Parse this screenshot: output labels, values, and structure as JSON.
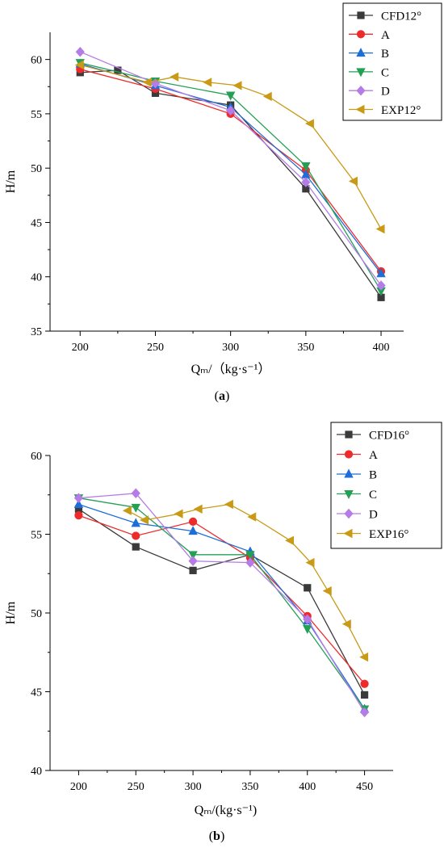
{
  "chart_data": [
    {
      "type": "line",
      "panel_label": "(a)",
      "xlabel": "Qₘ/（kg·s⁻¹）",
      "ylabel": "H/m",
      "xlim": [
        180,
        415
      ],
      "ylim": [
        35,
        62.5
      ],
      "xticks": [
        200,
        250,
        300,
        350,
        400
      ],
      "yticks": [
        35,
        40,
        45,
        50,
        55,
        60
      ],
      "legend_position": "top-right",
      "series": [
        {
          "name": "CFD12°",
          "color": "#3a3a3a",
          "marker": "square",
          "x": [
            200,
            225,
            250,
            300,
            350,
            400
          ],
          "y": [
            58.8,
            59.0,
            56.9,
            55.8,
            48.1,
            38.1
          ]
        },
        {
          "name": "A",
          "color": "#ee2b2b",
          "marker": "circle",
          "x": [
            200,
            250,
            300,
            350,
            400
          ],
          "y": [
            59.1,
            57.3,
            55.0,
            49.8,
            40.5
          ]
        },
        {
          "name": "B",
          "color": "#1e6ed8",
          "marker": "triangle-up",
          "x": [
            200,
            250,
            300,
            350,
            400
          ],
          "y": [
            59.6,
            57.6,
            55.6,
            49.4,
            40.3
          ]
        },
        {
          "name": "C",
          "color": "#24a055",
          "marker": "triangle-down",
          "x": [
            200,
            250,
            300,
            350,
            400
          ],
          "y": [
            59.7,
            58.0,
            56.7,
            50.2,
            38.7
          ]
        },
        {
          "name": "D",
          "color": "#b57be6",
          "marker": "diamond",
          "x": [
            200,
            250,
            300,
            350,
            400
          ],
          "y": [
            60.7,
            57.8,
            55.3,
            48.7,
            39.2
          ]
        },
        {
          "name": "EXP12°",
          "color": "#c99a16",
          "marker": "triangle-left",
          "x": [
            200,
            245,
            263,
            285,
            305,
            325,
            353,
            382,
            400
          ],
          "y": [
            59.5,
            57.9,
            58.4,
            57.9,
            57.6,
            56.6,
            54.1,
            48.8,
            44.4
          ]
        }
      ]
    },
    {
      "type": "line",
      "panel_label": "(b)",
      "xlabel": "Qₘ/(kg·s⁻¹)",
      "ylabel": "H/m",
      "xlim": [
        175,
        475
      ],
      "ylim": [
        40,
        60
      ],
      "xticks": [
        200,
        250,
        300,
        350,
        400,
        450
      ],
      "yticks": [
        40,
        45,
        50,
        55,
        60
      ],
      "legend_position": "top-right",
      "series": [
        {
          "name": "CFD16°",
          "color": "#3a3a3a",
          "marker": "square",
          "x": [
            200,
            250,
            300,
            350,
            400,
            450
          ],
          "y": [
            56.6,
            54.2,
            52.7,
            53.7,
            51.6,
            44.8
          ]
        },
        {
          "name": "A",
          "color": "#ee2b2b",
          "marker": "circle",
          "x": [
            200,
            250,
            300,
            350,
            400,
            450
          ],
          "y": [
            56.2,
            54.9,
            55.8,
            53.5,
            49.8,
            45.5
          ]
        },
        {
          "name": "B",
          "color": "#1e6ed8",
          "marker": "triangle-up",
          "x": [
            200,
            250,
            300,
            350,
            400,
            450
          ],
          "y": [
            56.9,
            55.7,
            55.2,
            53.9,
            49.5,
            43.9
          ]
        },
        {
          "name": "C",
          "color": "#24a055",
          "marker": "triangle-down",
          "x": [
            200,
            250,
            300,
            350,
            400,
            450
          ],
          "y": [
            57.3,
            56.7,
            53.7,
            53.7,
            49.0,
            43.9
          ]
        },
        {
          "name": "D",
          "color": "#b57be6",
          "marker": "diamond",
          "x": [
            200,
            250,
            300,
            350,
            400,
            450
          ],
          "y": [
            57.3,
            57.6,
            53.3,
            53.2,
            49.6,
            43.7
          ]
        },
        {
          "name": "EXP16°",
          "color": "#c99a16",
          "marker": "triangle-left",
          "x": [
            243,
            258,
            288,
            305,
            332,
            352,
            385,
            403,
            418,
            435,
            450
          ],
          "y": [
            56.5,
            55.9,
            56.3,
            56.6,
            56.9,
            56.1,
            54.6,
            53.2,
            51.4,
            49.3,
            47.2
          ]
        }
      ]
    }
  ]
}
